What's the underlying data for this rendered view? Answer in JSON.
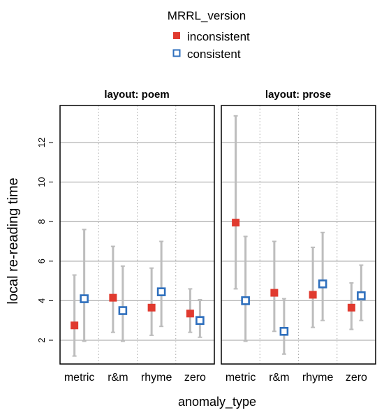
{
  "chart_data": {
    "type": "scatter",
    "legend": {
      "title": "MRRL_version",
      "position": "top",
      "entries": [
        {
          "label": "inconsistent",
          "marker": "filled-square",
          "color": "#e03a2f"
        },
        {
          "label": "consistent",
          "marker": "open-square",
          "color": "#2e6fbd"
        }
      ]
    },
    "xlabel": "anomaly_type",
    "ylabel": "local re-reading time",
    "ylim": [
      1,
      14
    ],
    "yticks": [
      2,
      4,
      6,
      8,
      10,
      12
    ],
    "grid": true,
    "categories": [
      "metric",
      "r&m",
      "rhyme",
      "zero"
    ],
    "panels": [
      {
        "title": "layout: poem",
        "series": [
          {
            "name": "inconsistent",
            "values": [
              2.75,
              4.15,
              3.65,
              3.35
            ],
            "lower": [
              1.2,
              2.4,
              2.25,
              2.4
            ],
            "upper": [
              5.3,
              6.75,
              5.65,
              4.6
            ]
          },
          {
            "name": "consistent",
            "values": [
              4.1,
              3.5,
              4.45,
              3.0
            ],
            "lower": [
              1.95,
              1.95,
              2.7,
              2.15
            ],
            "upper": [
              7.6,
              5.75,
              7.0,
              4.05
            ]
          }
        ]
      },
      {
        "title": "layout: prose",
        "series": [
          {
            "name": "inconsistent",
            "values": [
              7.95,
              4.4,
              4.3,
              3.65
            ],
            "lower": [
              4.6,
              2.45,
              2.65,
              2.55
            ],
            "upper": [
              13.35,
              7.0,
              6.7,
              4.9
            ]
          },
          {
            "name": "consistent",
            "values": [
              4.0,
              2.45,
              4.85,
              4.25
            ],
            "lower": [
              1.95,
              1.3,
              3.0,
              3.0
            ],
            "upper": [
              7.25,
              4.1,
              7.45,
              5.8
            ]
          }
        ]
      }
    ]
  }
}
